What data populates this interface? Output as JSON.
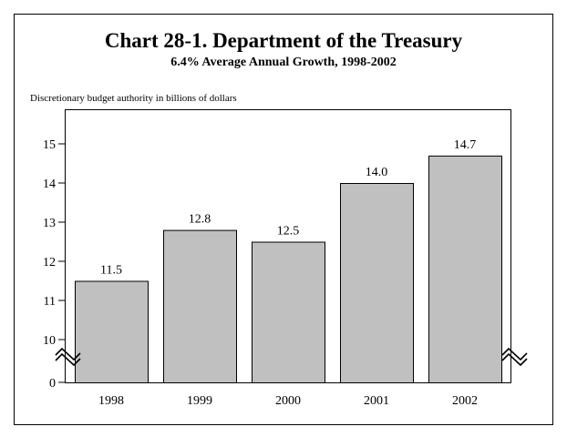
{
  "chart_data": {
    "type": "bar",
    "title": "Chart 28-1. Department of the Treasury",
    "subtitle": "6.4% Average Annual Growth, 1998-2002",
    "ylabel": "Discretionary budget authority in billions of dollars",
    "xlabel": "",
    "categories": [
      "1998",
      "1999",
      "2000",
      "2001",
      "2002"
    ],
    "values": [
      11.5,
      12.8,
      12.5,
      14.0,
      14.7
    ],
    "value_labels": [
      "11.5",
      "12.8",
      "12.5",
      "14.0",
      "14.7"
    ],
    "yticks": [
      "0",
      "10",
      "11",
      "12",
      "13",
      "14",
      "15"
    ],
    "ylim": [
      10,
      15.8
    ],
    "axis_break": "between 0 and 10",
    "grid": false,
    "bar_color": "#c0c0c0"
  }
}
